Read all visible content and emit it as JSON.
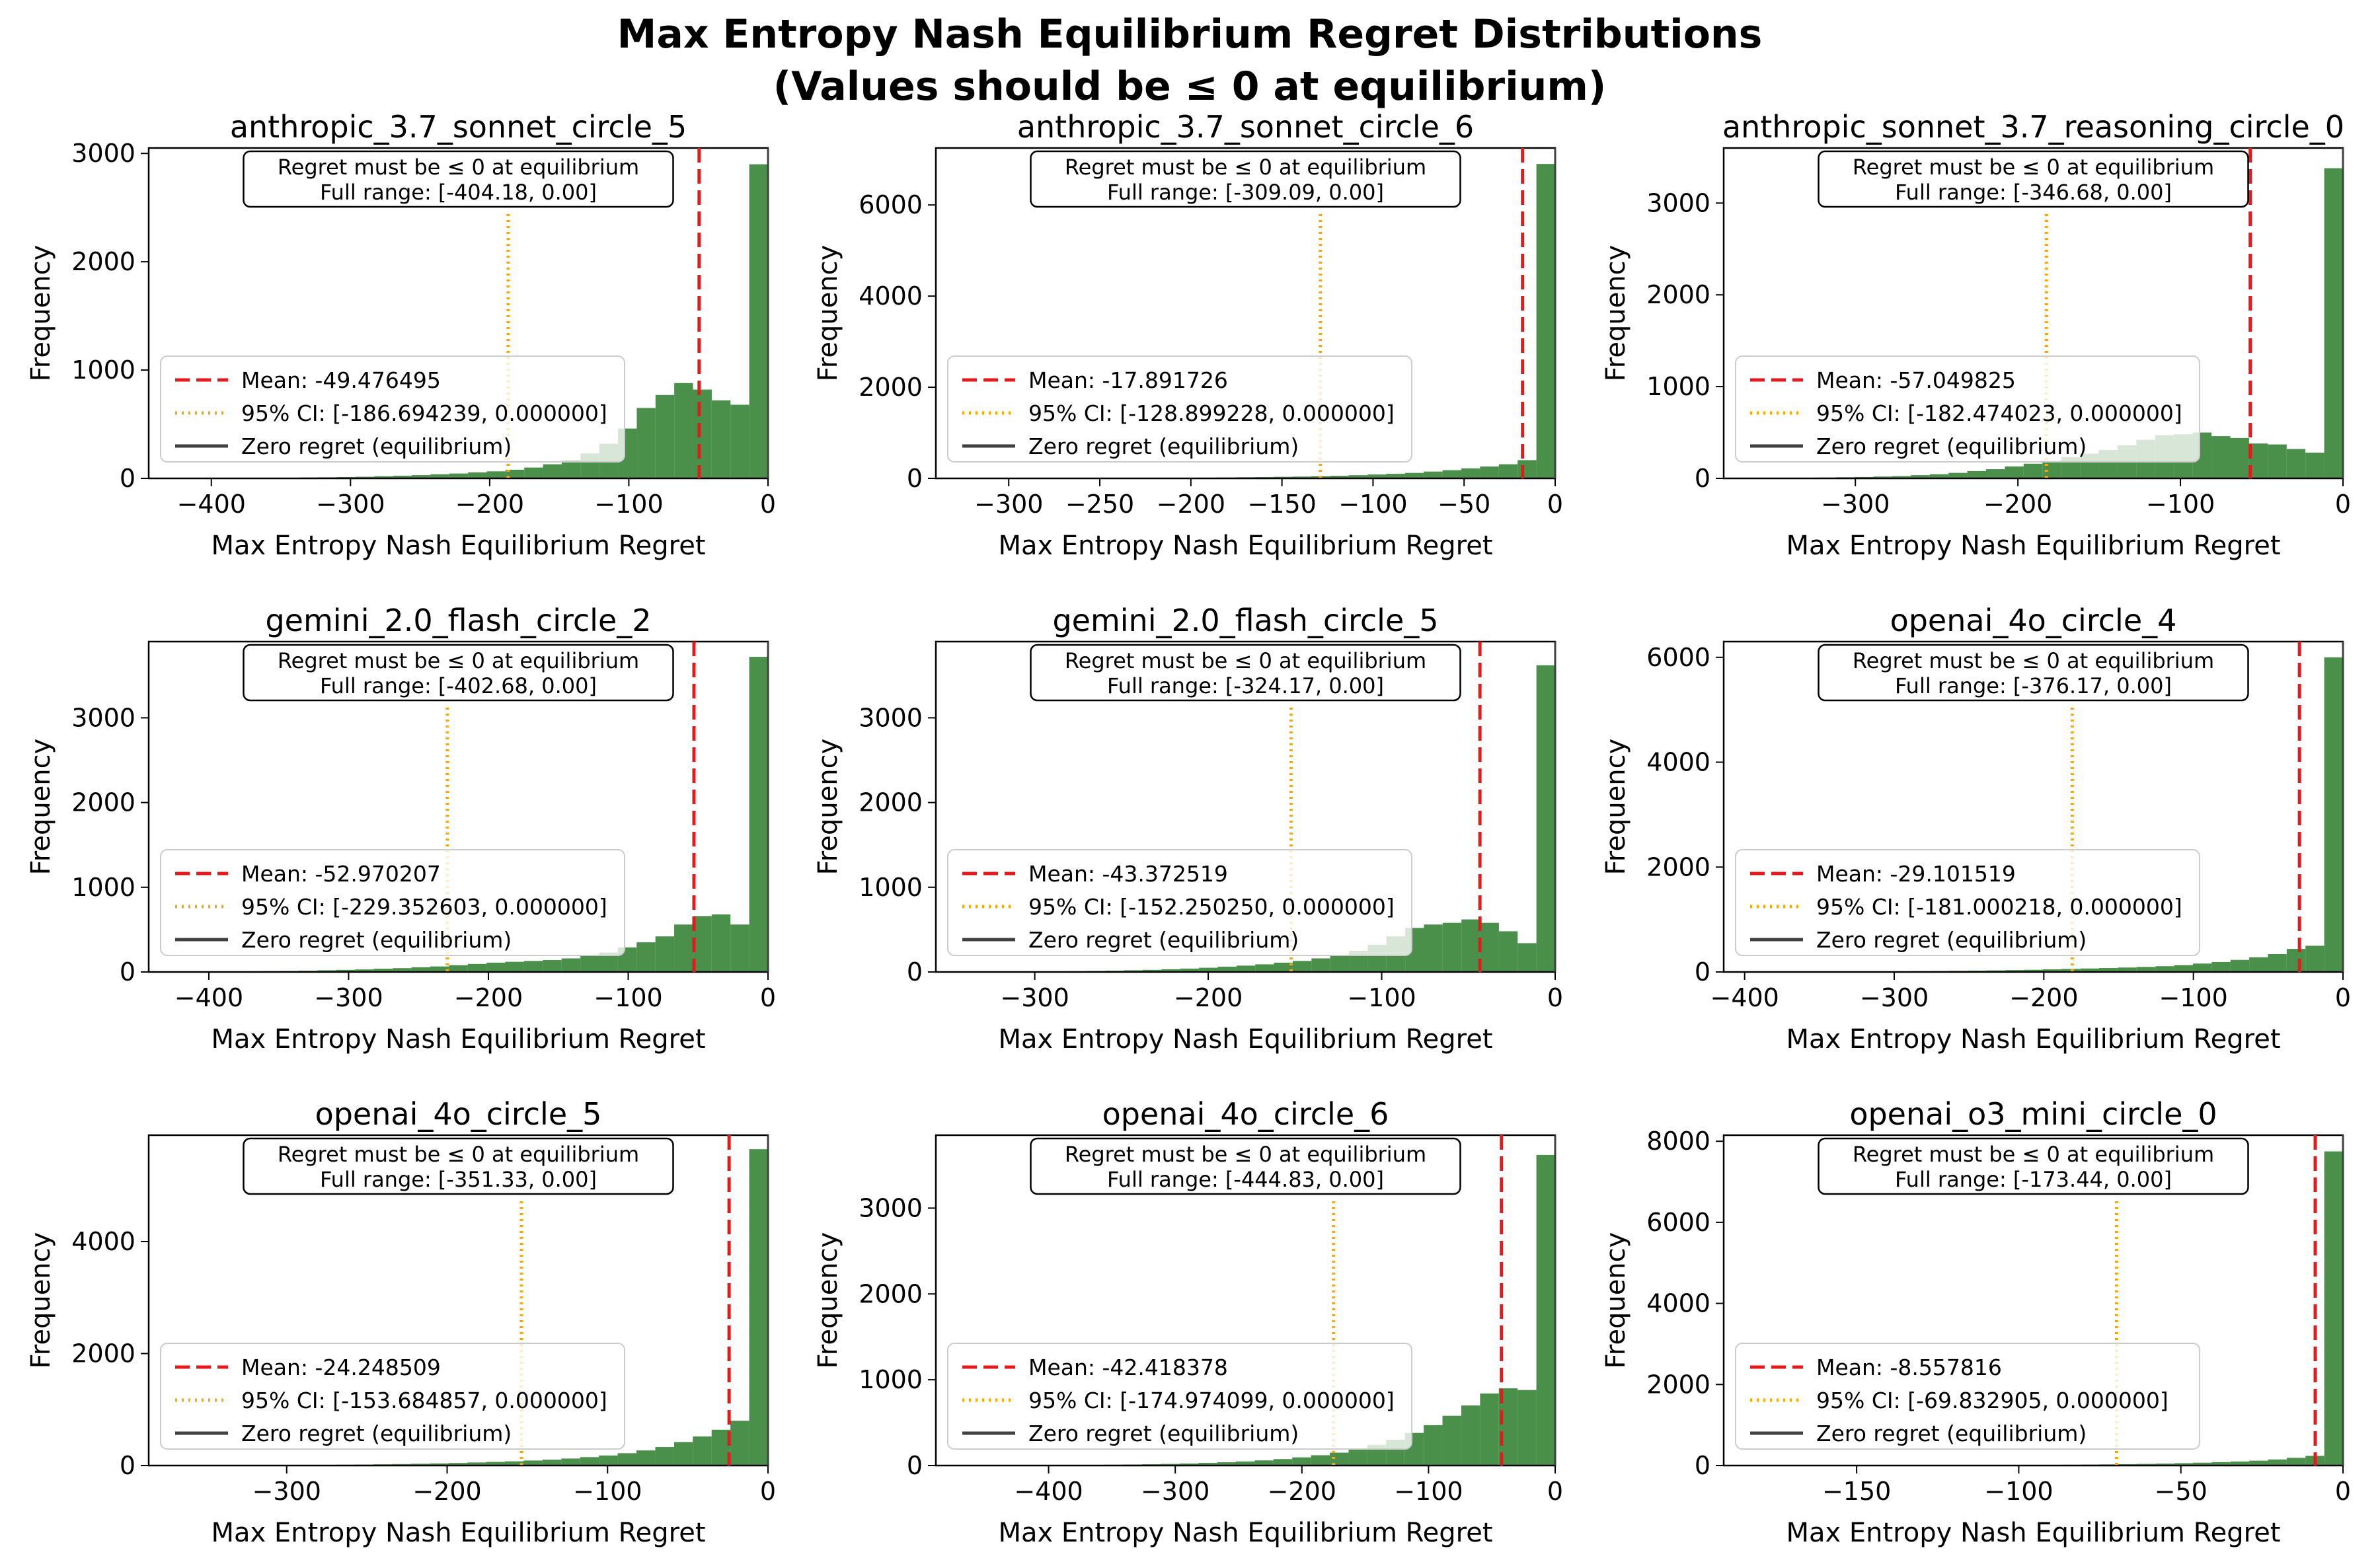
{
  "figure": {
    "title_line1": "Max Entropy Nash Equilibrium Regret Distributions",
    "title_line2": "(Values should be ≤ 0 at equilibrium)"
  },
  "colors": {
    "bar": "#4a8f4a",
    "bar_faded": "#d6e6d6",
    "mean": "#e41a1c",
    "ci": "#ffa500",
    "zero": "#404040"
  },
  "chart_data": [
    {
      "type": "bar",
      "title": "anthropic_3.7_sonnet_circle_5",
      "xlabel": "Max Entropy Nash Equilibrium Regret",
      "ylabel": "Frequency",
      "xlim": [
        -445,
        0
      ],
      "ylim": [
        0,
        3050
      ],
      "xticks": [
        -400,
        -300,
        -200,
        -100,
        0
      ],
      "yticks": [
        0,
        1000,
        2000,
        3000
      ],
      "annotation_line1": "Regret must be ≤ 0 at equilibrium",
      "annotation_line2": "Full range: [-404.18, 0.00]",
      "mean": -49.476495,
      "ci": [
        -186.694239,
        0.0
      ],
      "legend": [
        "Mean: -49.476495",
        "95% CI: [-186.694239, 0.000000]",
        "Zero regret (equilibrium)"
      ],
      "bins": {
        "min": -404.18,
        "max": 0,
        "n": 30
      },
      "counts": [
        3,
        3,
        4,
        5,
        6,
        8,
        10,
        12,
        15,
        20,
        25,
        30,
        38,
        45,
        55,
        65,
        80,
        100,
        130,
        170,
        230,
        320,
        460,
        650,
        770,
        880,
        820,
        720,
        680,
        2900
      ]
    },
    {
      "type": "bar",
      "title": "anthropic_3.7_sonnet_circle_6",
      "xlabel": "Max Entropy Nash Equilibrium Regret",
      "ylabel": "Frequency",
      "xlim": [
        -340,
        0
      ],
      "ylim": [
        0,
        7250
      ],
      "xticks": [
        -300,
        -250,
        -200,
        -150,
        -100,
        -50,
        0
      ],
      "yticks": [
        0,
        2000,
        4000,
        6000
      ],
      "annotation_line1": "Regret must be ≤ 0 at equilibrium",
      "annotation_line2": "Full range: [-309.09, 0.00]",
      "mean": -17.891726,
      "ci": [
        -128.899228,
        0.0
      ],
      "legend": [
        "Mean: -17.891726",
        "95% CI: [-128.899228, 0.000000]",
        "Zero regret (equilibrium)"
      ],
      "bins": {
        "min": -309.09,
        "max": 0,
        "n": 30
      },
      "counts": [
        2,
        2,
        3,
        3,
        4,
        5,
        6,
        7,
        9,
        11,
        13,
        16,
        20,
        24,
        28,
        34,
        40,
        48,
        58,
        70,
        85,
        100,
        120,
        150,
        180,
        220,
        260,
        310,
        400,
        6900
      ]
    },
    {
      "type": "bar",
      "title": "anthropic_sonnet_3.7_reasoning_circle_0",
      "xlabel": "Max Entropy Nash Equilibrium Regret",
      "ylabel": "Frequency",
      "xlim": [
        -381,
        0
      ],
      "ylim": [
        0,
        3600
      ],
      "xticks": [
        -300,
        -200,
        -100,
        0
      ],
      "yticks": [
        0,
        1000,
        2000,
        3000
      ],
      "annotation_line1": "Regret must be ≤ 0 at equilibrium",
      "annotation_line2": "Full range: [-346.68, 0.00]",
      "mean": -57.049825,
      "ci": [
        -182.474023,
        0.0
      ],
      "legend": [
        "Mean: -57.049825",
        "95% CI: [-182.474023, 0.000000]",
        "Zero regret (equilibrium)"
      ],
      "bins": {
        "min": -346.68,
        "max": 0,
        "n": 30
      },
      "counts": [
        5,
        7,
        9,
        12,
        15,
        20,
        25,
        35,
        45,
        60,
        80,
        100,
        130,
        160,
        190,
        230,
        270,
        310,
        360,
        420,
        470,
        480,
        500,
        460,
        440,
        380,
        370,
        320,
        280,
        3380
      ]
    },
    {
      "type": "bar",
      "title": "gemini_2.0_flash_circle_2",
      "xlabel": "Max Entropy Nash Equilibrium Regret",
      "ylabel": "Frequency",
      "xlim": [
        -443,
        0
      ],
      "ylim": [
        0,
        3900
      ],
      "xticks": [
        -400,
        -300,
        -200,
        -100,
        0
      ],
      "yticks": [
        0,
        1000,
        2000,
        3000
      ],
      "annotation_line1": "Regret must be ≤ 0 at equilibrium",
      "annotation_line2": "Full range: [-402.68, 0.00]",
      "mean": -52.970207,
      "ci": [
        -229.352603,
        0.0
      ],
      "legend": [
        "Mean: -52.970207",
        "95% CI: [-229.352603, 0.000000]",
        "Zero regret (equilibrium)"
      ],
      "bins": {
        "min": -402.68,
        "max": 0,
        "n": 30
      },
      "counts": [
        5,
        6,
        8,
        10,
        12,
        15,
        20,
        25,
        30,
        38,
        45,
        55,
        65,
        80,
        95,
        110,
        120,
        130,
        140,
        160,
        190,
        230,
        290,
        350,
        420,
        560,
        660,
        680,
        560,
        3720
      ]
    },
    {
      "type": "bar",
      "title": "gemini_2.0_flash_circle_5",
      "xlabel": "Max Entropy Nash Equilibrium Regret",
      "ylabel": "Frequency",
      "xlim": [
        -357,
        0
      ],
      "ylim": [
        0,
        3900
      ],
      "xticks": [
        -300,
        -200,
        -100,
        0
      ],
      "yticks": [
        0,
        1000,
        2000,
        3000
      ],
      "annotation_line1": "Regret must be ≤ 0 at equilibrium",
      "annotation_line2": "Full range: [-324.17, 0.00]",
      "mean": -43.372519,
      "ci": [
        -152.25025,
        0.0
      ],
      "legend": [
        "Mean: -43.372519",
        "95% CI: [-152.250250, 0.000000]",
        "Zero regret (equilibrium)"
      ],
      "bins": {
        "min": -324.17,
        "max": 0,
        "n": 30
      },
      "counts": [
        3,
        4,
        5,
        7,
        9,
        12,
        15,
        20,
        25,
        32,
        40,
        50,
        62,
        75,
        90,
        110,
        130,
        160,
        200,
        250,
        320,
        420,
        520,
        560,
        580,
        620,
        580,
        480,
        340,
        3620
      ]
    },
    {
      "type": "bar",
      "title": "openai_4o_circle_4",
      "xlabel": "Max Entropy Nash Equilibrium Regret",
      "ylabel": "Frequency",
      "xlim": [
        -414,
        0
      ],
      "ylim": [
        0,
        6300
      ],
      "xticks": [
        -400,
        -300,
        -200,
        -100,
        0
      ],
      "yticks": [
        0,
        2000,
        4000,
        6000
      ],
      "annotation_line1": "Regret must be ≤ 0 at equilibrium",
      "annotation_line2": "Full range: [-376.17, 0.00]",
      "mean": -29.101519,
      "ci": [
        -181.000218,
        0.0
      ],
      "legend": [
        "Mean: -29.101519",
        "95% CI: [-181.000218, 0.000000]",
        "Zero regret (equilibrium)"
      ],
      "bins": {
        "min": -376.17,
        "max": 0,
        "n": 30
      },
      "counts": [
        3,
        4,
        5,
        6,
        8,
        10,
        12,
        15,
        18,
        22,
        26,
        30,
        36,
        42,
        50,
        58,
        66,
        75,
        85,
        95,
        110,
        130,
        160,
        190,
        230,
        280,
        340,
        440,
        500,
        6000
      ]
    },
    {
      "type": "bar",
      "title": "openai_4o_circle_5",
      "xlabel": "Max Entropy Nash Equilibrium Regret",
      "ylabel": "Frequency",
      "xlim": [
        -386,
        0
      ],
      "ylim": [
        0,
        5900
      ],
      "xticks": [
        -300,
        -200,
        -100,
        0
      ],
      "yticks": [
        0,
        2000,
        4000
      ],
      "annotation_line1": "Regret must be ≤ 0 at equilibrium",
      "annotation_line2": "Full range: [-351.33, 0.00]",
      "mean": -24.248509,
      "ci": [
        -153.684857,
        0.0
      ],
      "legend": [
        "Mean: -24.248509",
        "95% CI: [-153.684857, 0.000000]",
        "Zero regret (equilibrium)"
      ],
      "bins": {
        "min": -351.33,
        "max": 0,
        "n": 30
      },
      "counts": [
        3,
        4,
        5,
        6,
        8,
        10,
        12,
        15,
        18,
        22,
        26,
        32,
        38,
        45,
        55,
        65,
        75,
        90,
        105,
        125,
        150,
        180,
        220,
        270,
        330,
        420,
        520,
        640,
        800,
        5650
      ]
    },
    {
      "type": "bar",
      "title": "openai_4o_circle_6",
      "xlabel": "Max Entropy Nash Equilibrium Regret",
      "ylabel": "Frequency",
      "xlim": [
        -489,
        0
      ],
      "ylim": [
        0,
        3850
      ],
      "xticks": [
        -400,
        -300,
        -200,
        -100,
        0
      ],
      "yticks": [
        0,
        1000,
        2000,
        3000
      ],
      "annotation_line1": "Regret must be ≤ 0 at equilibrium",
      "annotation_line2": "Full range: [-444.83, 0.00]",
      "mean": -42.418378,
      "ci": [
        -174.974099,
        0.0
      ],
      "legend": [
        "Mean: -42.418378",
        "95% CI: [-174.974099, 0.000000]",
        "Zero regret (equilibrium)"
      ],
      "bins": {
        "min": -444.83,
        "max": 0,
        "n": 30
      },
      "counts": [
        3,
        3,
        4,
        5,
        6,
        8,
        10,
        12,
        15,
        19,
        24,
        30,
        38,
        48,
        60,
        75,
        95,
        120,
        150,
        190,
        240,
        300,
        380,
        470,
        580,
        700,
        840,
        900,
        880,
        3620
      ]
    },
    {
      "type": "bar",
      "title": "openai_o3_mini_circle_0",
      "xlabel": "Max Entropy Nash Equilibrium Regret",
      "ylabel": "Frequency",
      "xlim": [
        -191,
        0
      ],
      "ylim": [
        0,
        8150
      ],
      "xticks": [
        -150,
        -100,
        -50,
        0
      ],
      "yticks": [
        0,
        2000,
        4000,
        6000,
        8000
      ],
      "annotation_line1": "Regret must be ≤ 0 at equilibrium",
      "annotation_line2": "Full range: [-173.44, 0.00]",
      "mean": -8.557816,
      "ci": [
        -69.832905,
        0.0
      ],
      "legend": [
        "Mean: -8.557816",
        "95% CI: [-69.832905, 0.000000]",
        "Zero regret (equilibrium)"
      ],
      "bins": {
        "min": -173.44,
        "max": 0,
        "n": 30
      },
      "counts": [
        1,
        1,
        2,
        2,
        3,
        3,
        4,
        5,
        6,
        7,
        8,
        10,
        12,
        14,
        17,
        20,
        24,
        28,
        34,
        40,
        48,
        58,
        70,
        85,
        100,
        120,
        150,
        190,
        240,
        7750
      ]
    }
  ]
}
